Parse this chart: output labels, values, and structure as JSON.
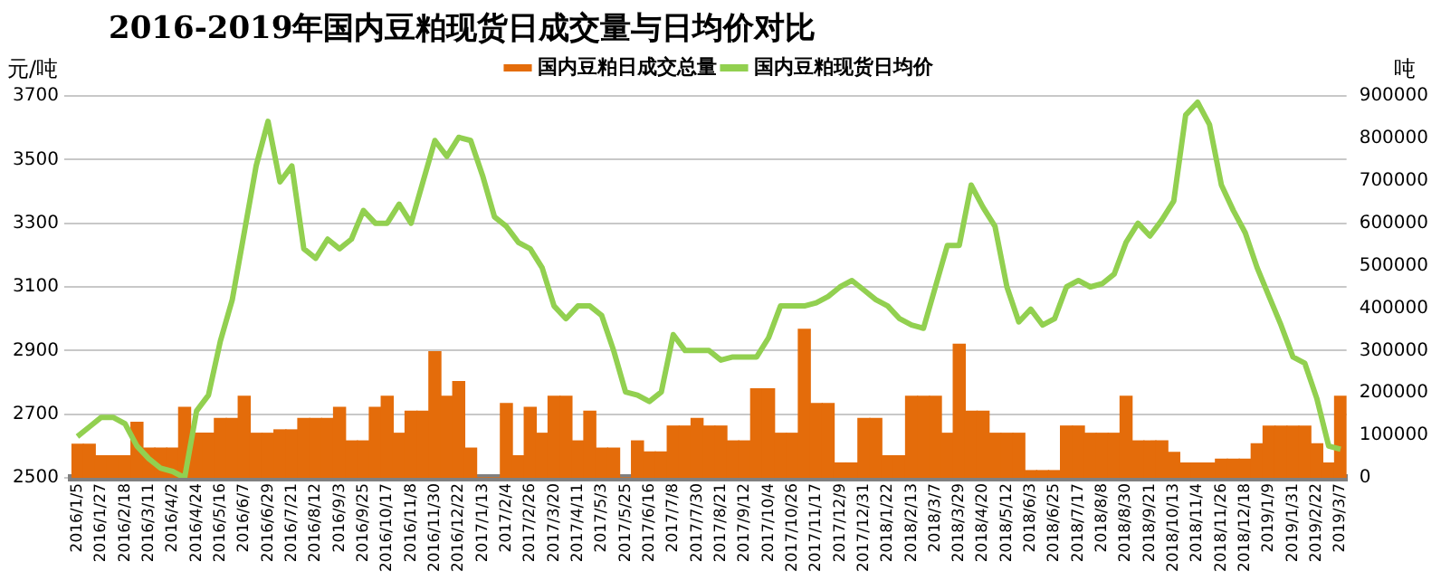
{
  "chart_data": {
    "type": "bar",
    "title": "2016-2019年国内豆粕现货日成交量与日均价对比",
    "ylabel": "元/吨",
    "y2label": "吨",
    "categories": [
      "2016/1/5",
      null,
      "2016/1/27",
      null,
      "2016/2/18",
      null,
      "2016/3/11",
      null,
      "2016/4/2",
      null,
      "2016/4/24",
      null,
      "2016/5/16",
      null,
      "2016/6/7",
      null,
      "2016/6/29",
      null,
      "2016/7/21",
      null,
      "2016/8/12",
      null,
      "2016/9/3",
      null,
      "2016/9/25",
      null,
      "2016/10/17",
      null,
      "2016/11/8",
      null,
      "2016/11/30",
      null,
      "2016/12/22",
      null,
      "2017/1/13",
      null,
      "2017/2/4",
      null,
      "2017/2/26",
      null,
      "2017/3/20",
      null,
      "2017/4/11",
      null,
      "2017/5/3",
      null,
      "2017/5/25",
      null,
      "2017/6/16",
      null,
      "2017/7/8",
      null,
      "2017/7/30",
      null,
      "2017/8/21",
      null,
      "2017/9/12",
      null,
      "2017/10/4",
      null,
      "2017/10/26",
      null,
      "2017/11/17",
      null,
      "2017/12/9",
      null,
      "2017/12/31",
      null,
      "2018/1/22",
      null,
      "2018/2/13",
      null,
      "2018/3/7",
      null,
      "2018/3/29",
      null,
      "2018/4/20",
      null,
      "2018/5/12",
      null,
      "2018/6/3",
      null,
      "2018/6/25",
      null,
      "2018/7/17",
      null,
      "2018/8/8",
      null,
      "2018/8/30",
      null,
      "2018/9/21",
      null,
      "2018/10/13",
      null,
      "2018/11/4",
      null,
      "2018/11/26",
      null,
      "2018/12/18",
      null,
      "2019/1/9",
      null,
      "2019/1/31",
      null,
      "2019/2/22",
      null,
      "2019/3/7"
    ],
    "series": [
      {
        "name": "国内豆粕日成交总量",
        "axis": "y2",
        "color": "#e46c0a",
        "values": [
          79000,
          79000,
          52000,
          52000,
          52000,
          131000,
          70000,
          70000,
          70000,
          166000,
          105000,
          105000,
          140000,
          140000,
          192000,
          105000,
          105000,
          113000,
          113000,
          140000,
          140000,
          140000,
          166000,
          87000,
          87000,
          166000,
          192000,
          105000,
          157000,
          157000,
          297000,
          192000,
          227000,
          70000,
          0,
          0,
          175000,
          52000,
          166000,
          105000,
          192000,
          192000,
          87000,
          157000,
          70000,
          70000,
          0,
          87000,
          61000,
          61000,
          122000,
          122000,
          140000,
          122000,
          122000,
          87000,
          87000,
          210000,
          210000,
          105000,
          105000,
          350000,
          175000,
          175000,
          35000,
          35000,
          140000,
          140000,
          52000,
          52000,
          192000,
          192000,
          192000,
          105000,
          315000,
          157000,
          157000,
          105000,
          105000,
          105000,
          17000,
          17000,
          17000,
          122000,
          122000,
          105000,
          105000,
          105000,
          192000,
          87000,
          87000,
          87000,
          60000,
          35000,
          35000,
          35000,
          44000,
          44000,
          44000,
          80000,
          122000,
          122000,
          122000,
          122000,
          80000,
          35000,
          192000
        ]
      },
      {
        "name": "国内豆粕现货日均价",
        "type": "line",
        "color": "#92d050",
        "values": [
          2630,
          2660,
          2690,
          2690,
          2670,
          2600,
          2560,
          2530,
          2520,
          2500,
          2710,
          2760,
          2930,
          3060,
          3270,
          3480,
          3620,
          3430,
          3480,
          3220,
          3190,
          3250,
          3220,
          3250,
          3340,
          3300,
          3300,
          3360,
          3300,
          3430,
          3560,
          3510,
          3570,
          3560,
          3450,
          3320,
          3290,
          3240,
          3220,
          3160,
          3040,
          3000,
          3040,
          3040,
          3010,
          2900,
          2770,
          2760,
          2740,
          2770,
          2950,
          2900,
          2900,
          2900,
          2870,
          2880,
          2880,
          2880,
          2940,
          3040,
          3040,
          3040,
          3050,
          3070,
          3100,
          3120,
          3090,
          3060,
          3040,
          3000,
          2980,
          2970,
          3100,
          3230,
          3230,
          3420,
          3350,
          3290,
          3100,
          2990,
          3030,
          2980,
          3000,
          3100,
          3120,
          3100,
          3110,
          3140,
          3240,
          3300,
          3260,
          3310,
          3370,
          3640,
          3680,
          3610,
          3420,
          3340,
          3270,
          3160,
          3070,
          2980,
          2880,
          2860,
          2750,
          2600,
          2590
        ]
      }
    ],
    "ylim": [
      2500,
      3700
    ],
    "yticks": [
      2500,
      2700,
      2900,
      3100,
      3300,
      3500,
      3700
    ],
    "y2lim": [
      0,
      900000
    ],
    "y2ticks": [
      0,
      100000,
      200000,
      300000,
      400000,
      500000,
      600000,
      700000,
      800000,
      900000
    ],
    "grid": "y",
    "legend": "top",
    "marker": "none"
  }
}
